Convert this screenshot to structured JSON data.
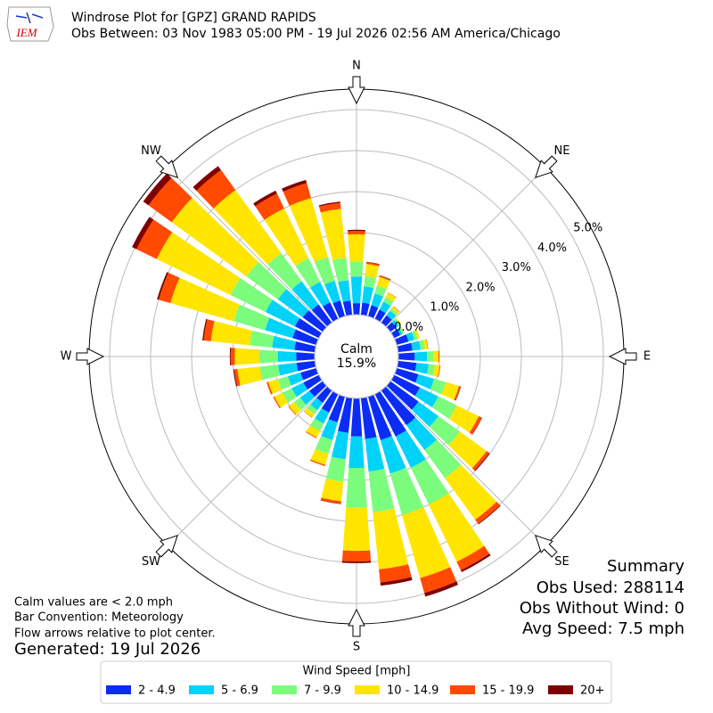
{
  "logo": "IEM",
  "chart_data": {
    "type": "windrose",
    "title": "Windrose Plot for [GPZ] GRAND RAPIDS",
    "subtitle": "Obs Between: 03 Nov 1983 05:00 PM - 19 Jul 2026 02:56 AM America/Chicago",
    "x": [
      0,
      10,
      20,
      30,
      40,
      50,
      60,
      70,
      80,
      90,
      100,
      110,
      120,
      130,
      140,
      150,
      160,
      170,
      180,
      190,
      200,
      210,
      220,
      230,
      240,
      250,
      260,
      270,
      280,
      290,
      300,
      310,
      320,
      330,
      340,
      350
    ],
    "xticks": [
      {
        "value": 0,
        "label": "N"
      },
      {
        "value": 45,
        "label": "NE"
      },
      {
        "value": 90,
        "label": "E"
      },
      {
        "value": 135,
        "label": "SE"
      },
      {
        "value": 180,
        "label": "S"
      },
      {
        "value": 225,
        "label": "SW"
      },
      {
        "value": 270,
        "label": "W"
      },
      {
        "value": 315,
        "label": "NW"
      }
    ],
    "ylim": [
      0,
      5.5
    ],
    "yticks": [
      {
        "value": 0,
        "label": "0.0%"
      },
      {
        "value": 1,
        "label": "1.0%"
      },
      {
        "value": 2,
        "label": "2.0%"
      },
      {
        "value": 3,
        "label": "3.0%"
      },
      {
        "value": 4,
        "label": "4.0%"
      },
      {
        "value": 5,
        "label": "5.0%"
      }
    ],
    "grid": true,
    "calm_label": "Calm",
    "calm_value": 15.9,
    "calm_value_label": "15.9%",
    "legend_title": "Wind Speed [mph]",
    "series": [
      {
        "name": "2 - 4.9",
        "color": "#0a2cf5",
        "values": [
          0.28,
          0.3,
          0.28,
          0.25,
          0.22,
          0.18,
          0.17,
          0.3,
          0.35,
          0.4,
          0.45,
          0.55,
          0.7,
          0.85,
          1.05,
          1.15,
          1.1,
          1.0,
          0.93,
          0.85,
          0.65,
          0.5,
          0.38,
          0.4,
          0.42,
          0.4,
          0.45,
          0.45,
          0.5,
          0.6,
          0.65,
          0.6,
          0.55,
          0.45,
          0.4,
          0.35
        ]
      },
      {
        "name": "5 - 6.9",
        "color": "#00d2fa",
        "values": [
          0.65,
          0.4,
          0.3,
          0.22,
          0.14,
          0.08,
          0.06,
          0.15,
          0.2,
          0.3,
          0.3,
          0.4,
          0.5,
          0.6,
          0.75,
          0.85,
          0.85,
          0.8,
          0.77,
          0.65,
          0.45,
          0.3,
          0.22,
          0.28,
          0.32,
          0.32,
          0.45,
          0.45,
          0.55,
          0.7,
          0.8,
          0.75,
          0.7,
          0.55,
          0.5,
          0.5
        ]
      },
      {
        "name": "7 - 9.9",
        "color": "#7cfc7c",
        "values": [
          0.37,
          0.25,
          0.2,
          0.12,
          0.07,
          0.04,
          0.03,
          0.08,
          0.1,
          0.15,
          0.15,
          0.3,
          0.5,
          0.65,
          0.85,
          1.0,
          1.05,
          1.0,
          0.97,
          0.55,
          0.35,
          0.2,
          0.12,
          0.18,
          0.25,
          0.26,
          0.45,
          0.45,
          0.55,
          0.8,
          0.95,
          0.95,
          0.85,
          0.65,
          0.6,
          0.55
        ]
      },
      {
        "name": "10 - 14.9",
        "color": "#ffe500",
        "values": [
          0.66,
          0.3,
          0.22,
          0.12,
          0.06,
          0.03,
          0.02,
          0.06,
          0.08,
          0.13,
          0.12,
          0.33,
          0.6,
          0.8,
          1.25,
          1.55,
          1.6,
          1.4,
          1.05,
          0.48,
          0.28,
          0.18,
          0.1,
          0.16,
          0.22,
          0.24,
          0.55,
          0.6,
          0.95,
          1.6,
          2.0,
          2.25,
          1.9,
          1.35,
          1.5,
          1.2
        ]
      },
      {
        "name": "15 - 19.9",
        "color": "#ff4a00",
        "values": [
          0.08,
          0.04,
          0.03,
          0.01,
          0.01,
          0,
          0,
          0,
          0.01,
          0.02,
          0.02,
          0.04,
          0.08,
          0.08,
          0.12,
          0.23,
          0.38,
          0.32,
          0.26,
          0.06,
          0.03,
          0.02,
          0.01,
          0.02,
          0.03,
          0.04,
          0.08,
          0.1,
          0.18,
          0.3,
          0.55,
          0.7,
          0.6,
          0.4,
          0.38,
          0.15
        ]
      },
      {
        "name": "20+",
        "color": "#7f0000",
        "values": [
          0.03,
          0.01,
          0.01,
          0,
          0,
          0,
          0,
          0,
          0,
          0,
          0,
          0.01,
          0.01,
          0.02,
          0.02,
          0.05,
          0.09,
          0.08,
          0.04,
          0.01,
          0,
          0,
          0,
          0,
          0,
          0,
          0.02,
          0.02,
          0.03,
          0.04,
          0.12,
          0.16,
          0.12,
          0.08,
          0.08,
          0.03
        ]
      }
    ]
  },
  "notes": [
    "Calm values are < 2.0 mph",
    "Bar Convention: Meteorology",
    "Flow arrows relative to plot center."
  ],
  "generated": "Generated: 19 Jul 2026",
  "summary": {
    "title": "Summary",
    "lines": [
      "Obs Used: 288114",
      "Obs Without Wind: 0",
      "Avg Speed: 7.5 mph"
    ]
  }
}
